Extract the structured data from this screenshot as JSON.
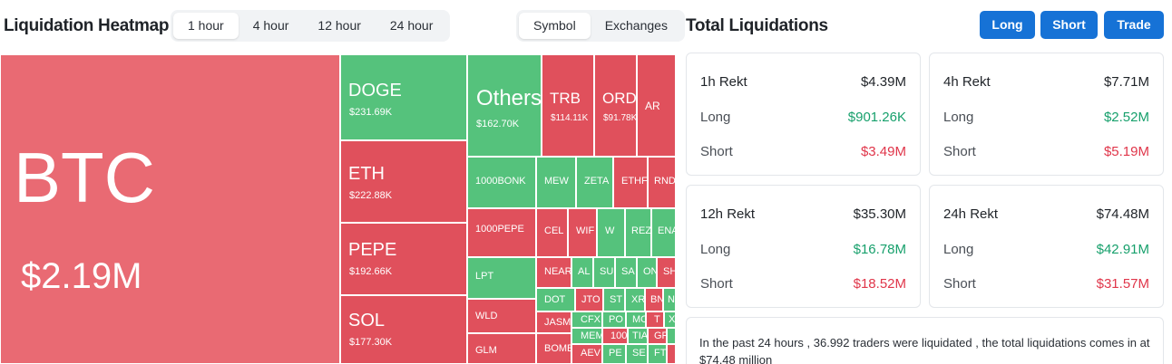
{
  "heatmap": {
    "title": "Liquidation Heatmap",
    "time_tabs": [
      "1 hour",
      "4 hour",
      "12 hour",
      "24 hour"
    ],
    "view_tabs": [
      "Symbol",
      "Exchanges"
    ],
    "tiles": {
      "btc": {
        "symbol": "BTC",
        "value": "$2.19M"
      },
      "doge": {
        "symbol": "DOGE",
        "value": "$231.69K"
      },
      "eth": {
        "symbol": "ETH",
        "value": "$222.88K"
      },
      "pepe": {
        "symbol": "PEPE",
        "value": "$192.66K"
      },
      "sol": {
        "symbol": "SOL",
        "value": "$177.30K"
      },
      "others": {
        "symbol": "Others",
        "value": "$162.70K"
      },
      "trb": {
        "symbol": "TRB",
        "value": "$114.11K"
      },
      "ord": {
        "symbol": "ORD",
        "value": "$91.78K"
      },
      "ar": {
        "symbol": "AR"
      },
      "bonk": {
        "symbol": "1000BONK"
      },
      "mew": {
        "symbol": "MEW"
      },
      "zeta": {
        "symbol": "ZETA"
      },
      "ethfi": {
        "symbol": "ETHFI"
      },
      "rndr": {
        "symbol": "RNDR"
      },
      "k1pepe": {
        "symbol": "1000PEPE"
      },
      "cel": {
        "symbol": "CEL"
      },
      "wif": {
        "symbol": "WIF"
      },
      "w": {
        "symbol": "W"
      },
      "rez": {
        "symbol": "REZ"
      },
      "ena": {
        "symbol": "ENA"
      },
      "lpt": {
        "symbol": "LPT"
      },
      "near": {
        "symbol": "NEAR"
      },
      "al": {
        "symbol": "AL"
      },
      "su": {
        "symbol": "SU"
      },
      "sa": {
        "symbol": "SA"
      },
      "on": {
        "symbol": "ON"
      },
      "sh": {
        "symbol": "SH"
      },
      "wld": {
        "symbol": "WLD"
      },
      "dot": {
        "symbol": "DOT"
      },
      "jto": {
        "symbol": "JTO"
      },
      "st": {
        "symbol": "ST"
      },
      "xr": {
        "symbol": "XR"
      },
      "bn": {
        "symbol": "BN"
      },
      "nk": {
        "symbol": "N"
      },
      "jasm": {
        "symbol": "JASM"
      },
      "cfx": {
        "symbol": "CFX"
      },
      "po": {
        "symbol": "PO"
      },
      "mo": {
        "symbol": "MO"
      },
      "tx": {
        "symbol": "T"
      },
      "xx": {
        "symbol": "X"
      },
      "glm": {
        "symbol": "GLM"
      },
      "bome": {
        "symbol": "BOME"
      },
      "mem": {
        "symbol": "MEM"
      },
      "k100": {
        "symbol": "100"
      },
      "tia": {
        "symbol": "TIA"
      },
      "gr": {
        "symbol": "GR"
      },
      "aev": {
        "symbol": "AEV"
      },
      "pe": {
        "symbol": "PE"
      },
      "se": {
        "symbol": "SE"
      },
      "ft": {
        "symbol": "FT"
      }
    }
  },
  "totals": {
    "title": "Total Liquidations",
    "buttons": {
      "long": "Long",
      "short": "Short",
      "trade": "Trade"
    },
    "cards": [
      {
        "label": "1h Rekt",
        "total": "$4.39M",
        "long_label": "Long",
        "long": "$901.26K",
        "short_label": "Short",
        "short": "$3.49M"
      },
      {
        "label": "4h Rekt",
        "total": "$7.71M",
        "long_label": "Long",
        "long": "$2.52M",
        "short_label": "Short",
        "short": "$5.19M"
      },
      {
        "label": "12h Rekt",
        "total": "$35.30M",
        "long_label": "Long",
        "long": "$16.78M",
        "short_label": "Short",
        "short": "$18.52M"
      },
      {
        "label": "24h Rekt",
        "total": "$74.48M",
        "long_label": "Long",
        "long": "$42.91M",
        "short_label": "Short",
        "short": "$31.57M"
      }
    ],
    "summary": "In the past 24 hours , 36.992 traders were liquidated , the total liquidations comes in at $74.48 million"
  },
  "colors": {
    "long_green": "#17a06c",
    "short_red": "#e0364a",
    "button_blue": "#1672d6"
  }
}
